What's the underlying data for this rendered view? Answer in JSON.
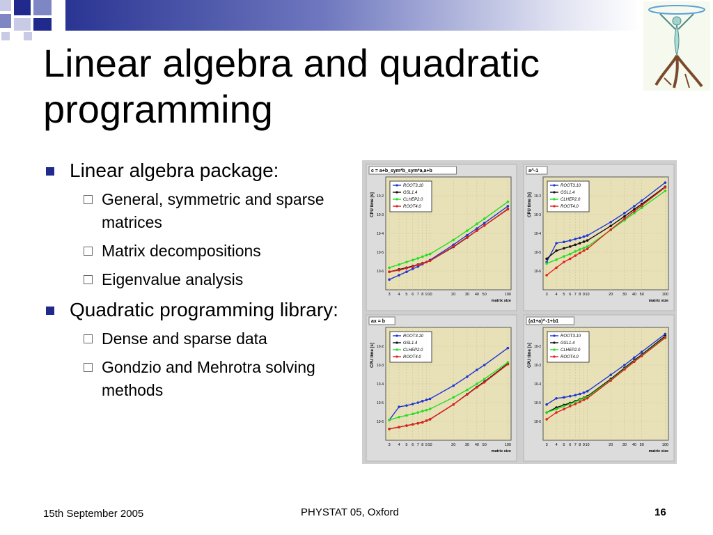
{
  "slide": {
    "title_lines": [
      "Linear algebra and quadratic",
      "programming"
    ],
    "bullets": [
      {
        "text": "Linear algebra package:",
        "sub": [
          "General, symmetric and sparse matrices",
          "Matrix decompositions",
          "Eigenvalue analysis"
        ]
      },
      {
        "text": "Quadratic programming library:",
        "sub": [
          "Dense and sparse data",
          "Gondzio and Mehrotra solving methods"
        ]
      }
    ],
    "footer": {
      "date": "15th September 2005",
      "event": "PHYSTAT 05, Oxford",
      "page": "16"
    },
    "colors": {
      "accent": "#1f2a8c",
      "plot_bg": "#e8e1b8",
      "frame": "#cfcfcf"
    },
    "logo_icon": "dancing-figure-logo-icon"
  },
  "chart_data": [
    {
      "type": "line",
      "title": "c = a+b_sym*b_sym*a,a+b",
      "xlabel": "matrix size",
      "ylabel": "CPU time [s]",
      "x": [
        3,
        4,
        5,
        6,
        7,
        8,
        9,
        10,
        20,
        30,
        40,
        50,
        100
      ],
      "xscale": "log",
      "yscale": "log",
      "legend": "top-left",
      "series": [
        {
          "name": "ROOT3.10",
          "color": "#1f35d6",
          "values": [
            3.5e-07,
            6e-07,
            9e-07,
            1.3e-06,
            1.7e-06,
            2.3e-06,
            3e-06,
            3.8e-06,
            2.5e-05,
            8e-05,
            0.00018,
            0.00035,
            0.0028
          ]
        },
        {
          "name": "GSL1.4",
          "color": "#111111",
          "values": [
            9e-07,
            1.2e-06,
            1.5e-06,
            1.8e-06,
            2.2e-06,
            2.6e-06,
            3e-06,
            3.5e-06,
            1.9e-05,
            6e-05,
            0.00014,
            0.00026,
            0.002
          ]
        },
        {
          "name": "CLHEP2.0",
          "color": "#22dd22",
          "values": [
            1.5e-06,
            2.2e-06,
            3e-06,
            3.8e-06,
            4.7e-06,
            5.8e-06,
            6.9e-06,
            8e-06,
            4.5e-05,
            0.00014,
            0.00032,
            0.0006,
            0.0048
          ]
        },
        {
          "name": "ROOT4.0",
          "color": "#e02020",
          "values": [
            9e-07,
            1.1e-06,
            1.4e-06,
            1.7e-06,
            2.1e-06,
            2.5e-06,
            3e-06,
            3.5e-06,
            2e-05,
            6.2e-05,
            0.00014,
            0.00026,
            0.0019
          ]
        }
      ]
    },
    {
      "type": "line",
      "title": "a^-1",
      "xlabel": "matrix size",
      "ylabel": "CPU time [s]",
      "x": [
        3,
        4,
        5,
        6,
        7,
        8,
        9,
        10,
        20,
        30,
        40,
        50,
        100
      ],
      "xscale": "log",
      "yscale": "log",
      "legend": "top-left",
      "series": [
        {
          "name": "ROOT3.10",
          "color": "#1f35d6",
          "values": [
            3e-06,
            3e-05,
            3.5e-05,
            4.2e-05,
            5e-05,
            5.8e-05,
            6.7e-05,
            7.7e-05,
            0.0004,
            0.0012,
            0.0028,
            0.0055,
            0.05
          ]
        },
        {
          "name": "GSL1.4",
          "color": "#111111",
          "values": [
            4.5e-06,
            1.2e-05,
            1.6e-05,
            2e-05,
            2.5e-05,
            3e-05,
            3.6e-05,
            4.2e-05,
            0.00025,
            0.0008,
            0.0019,
            0.0036,
            0.03
          ]
        },
        {
          "name": "CLHEP2.0",
          "color": "#22dd22",
          "values": [
            2.5e-06,
            4e-06,
            6e-06,
            8e-06,
            1.1e-05,
            1.4e-05,
            1.7e-05,
            2e-05,
            0.00015,
            0.0005,
            0.0012,
            0.0023,
            0.018
          ]
        },
        {
          "name": "ROOT4.0",
          "color": "#e02020",
          "values": [
            6e-07,
            1.5e-06,
            3e-06,
            4.5e-06,
            6.5e-06,
            9e-06,
            1.2e-05,
            1.5e-05,
            0.00016,
            0.0006,
            0.0015,
            0.003,
            0.028
          ]
        }
      ]
    },
    {
      "type": "line",
      "title": "ax = b",
      "xlabel": "matrix size",
      "ylabel": "CPU time [s]",
      "x": [
        3,
        4,
        5,
        6,
        7,
        8,
        9,
        10,
        20,
        30,
        40,
        50,
        100
      ],
      "xscale": "log",
      "yscale": "log",
      "legend": "top-left",
      "series": [
        {
          "name": "ROOT3.10",
          "color": "#1f35d6",
          "values": [
            1.2e-06,
            6e-06,
            7e-06,
            8.5e-06,
            1e-05,
            1.2e-05,
            1.4e-05,
            1.6e-05,
            8e-05,
            0.00024,
            0.00055,
            0.001,
            0.008
          ]
        },
        {
          "name": "GSL1.4",
          "color": "#111111",
          "values": [
            4e-07,
            5e-07,
            6e-07,
            7e-07,
            8e-07,
            9e-07,
            1.1e-06,
            1.3e-06,
            8e-06,
            2.8e-05,
            6.8e-05,
            0.00013,
            0.0012
          ]
        },
        {
          "name": "CLHEP2.0",
          "color": "#22dd22",
          "values": [
            1.2e-06,
            1.7e-06,
            2.1e-06,
            2.5e-06,
            3e-06,
            3.5e-06,
            4e-06,
            4.6e-06,
            1.9e-05,
            4.8e-05,
            0.0001,
            0.00018,
            0.0014
          ]
        },
        {
          "name": "ROOT4.0",
          "color": "#e02020",
          "values": [
            4e-07,
            5e-07,
            6e-07,
            7e-07,
            8e-07,
            9e-07,
            1.1e-06,
            1.3e-06,
            8e-06,
            2.7e-05,
            6.5e-05,
            0.00012,
            0.0011
          ]
        }
      ]
    },
    {
      "type": "line",
      "title": "(a1+a)^-1+b1",
      "xlabel": "matrix size",
      "ylabel": "CPU time [s]",
      "x": [
        3,
        4,
        5,
        6,
        7,
        8,
        9,
        10,
        20,
        30,
        40,
        50,
        100
      ],
      "xscale": "log",
      "yscale": "log",
      "legend": "top-left",
      "series": [
        {
          "name": "ROOT3.10",
          "color": "#1f35d6",
          "values": [
            8e-06,
            1.7e-05,
            1.9e-05,
            2.2e-05,
            2.5e-05,
            2.9e-05,
            3.4e-05,
            4e-05,
            0.0003,
            0.001,
            0.0025,
            0.005,
            0.045
          ]
        },
        {
          "name": "GSL1.4",
          "color": "#111111",
          "values": [
            3e-06,
            5.5e-06,
            7.5e-06,
            9.5e-06,
            1.2e-05,
            1.5e-05,
            1.8e-05,
            2.2e-05,
            0.00018,
            0.0007,
            0.0018,
            0.0036,
            0.035
          ]
        },
        {
          "name": "CLHEP2.0",
          "color": "#22dd22",
          "values": [
            3e-06,
            4.5e-06,
            6.5e-06,
            8.5e-06,
            1.1e-05,
            1.4e-05,
            1.7e-05,
            2e-05,
            0.00016,
            0.00062,
            0.0016,
            0.0032,
            0.03
          ]
        },
        {
          "name": "ROOT4.0",
          "color": "#e02020",
          "values": [
            1.3e-06,
            3e-06,
            4.5e-06,
            6.5e-06,
            8.5e-06,
            1.1e-05,
            1.4e-05,
            1.7e-05,
            0.00015,
            0.00058,
            0.0015,
            0.003,
            0.028
          ]
        }
      ]
    }
  ]
}
